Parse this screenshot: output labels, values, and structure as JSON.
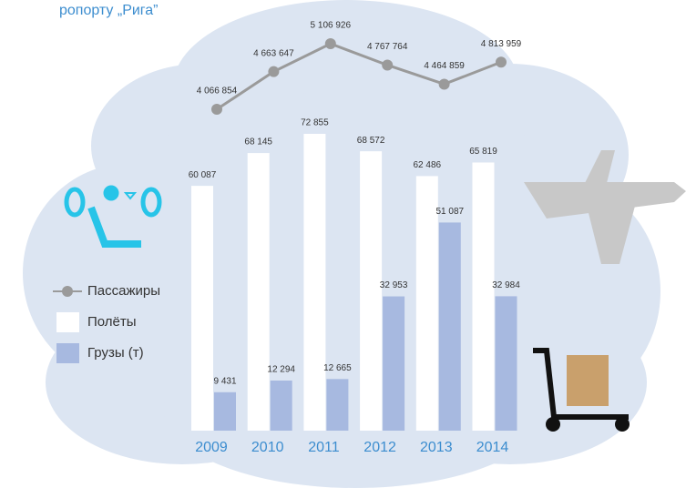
{
  "chart_data": {
    "type": "bar",
    "title": "ропорту „Рига”",
    "categories": [
      "2009",
      "2010",
      "2011",
      "2012",
      "2013",
      "2014"
    ],
    "series": [
      {
        "name": "Пассажиры",
        "type": "line",
        "color": "#9a9a9a",
        "values": [
          4066854,
          4663647,
          5106926,
          4767764,
          4464859,
          4813959
        ],
        "value_labels": [
          "4 066 854",
          "4 663 647",
          "5 106 926",
          "4 767 764",
          "4 464 859",
          "4 813 959"
        ]
      },
      {
        "name": "Полёты",
        "type": "bar",
        "color": "#ffffff",
        "values": [
          60087,
          68145,
          72855,
          68572,
          62486,
          65819
        ],
        "value_labels": [
          "60 087",
          "68 145",
          "72 855",
          "68 572",
          "62 486",
          "65 819"
        ]
      },
      {
        "name": "Грузы (т)",
        "type": "bar",
        "color": "#a7b9e0",
        "values": [
          9431,
          12294,
          12665,
          32953,
          51087,
          32984
        ],
        "value_labels": [
          "9 431",
          "12 294",
          "12 665",
          "32 953",
          "51 087",
          "32 984"
        ]
      }
    ]
  }
}
